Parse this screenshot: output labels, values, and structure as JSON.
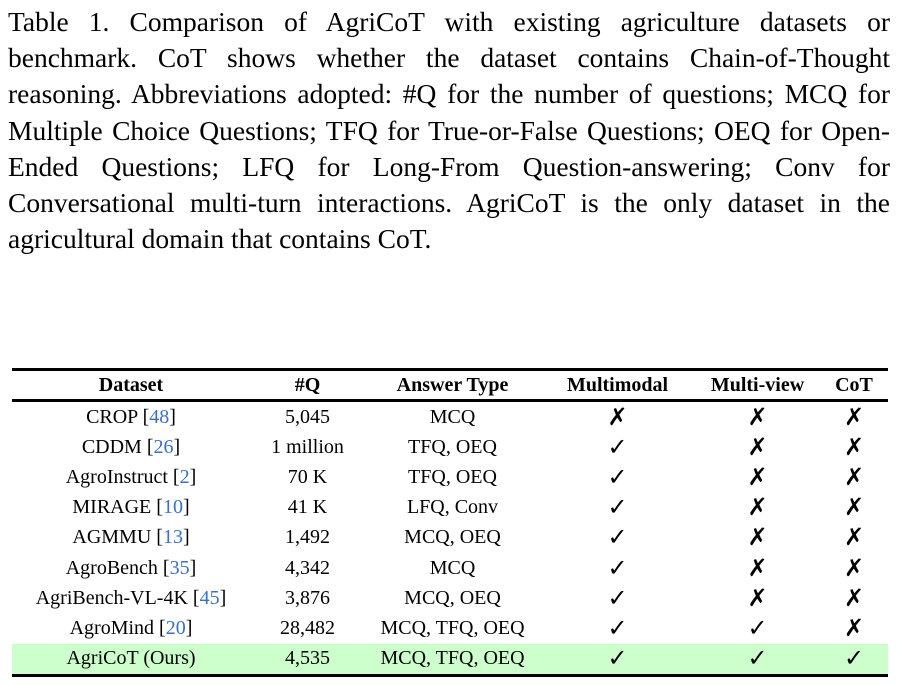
{
  "caption": "Table 1. Comparison of AgriCoT with existing agriculture datasets or benchmark. CoT shows whether the dataset contains Chain-of-Thought reasoning. Abbreviations adopted: #Q for the number of questions; MCQ for Multiple Choice Questions; TFQ for True-or-False Questions; OEQ for Open-Ended Questions; LFQ for Long-From Question-answering; Conv for Conversational multi-turn interactions. AgriCoT is the only dataset in the agricultural domain that contains CoT.",
  "table": {
    "headers": [
      "Dataset",
      "#Q",
      "Answer Type",
      "Multimodal",
      "Multi-view",
      "CoT"
    ],
    "symbols": {
      "yes": "✓",
      "no": "✗"
    },
    "highlight_color": "#ccffcc",
    "citation_color": "#3b6fc4",
    "rows": [
      {
        "name": "CROP",
        "cite": "48",
        "q": "5,045",
        "answer": "MCQ",
        "multimodal": "✗",
        "multiview": "✗",
        "cot": "✗"
      },
      {
        "name": "CDDM",
        "cite": "26",
        "q": "1 million",
        "answer": "TFQ, OEQ",
        "multimodal": "✓",
        "multiview": "✗",
        "cot": "✗"
      },
      {
        "name": "AgroInstruct",
        "cite": "2",
        "q": "70 K",
        "answer": "TFQ, OEQ",
        "multimodal": "✓",
        "multiview": "✗",
        "cot": "✗"
      },
      {
        "name": "MIRAGE",
        "cite": "10",
        "q": "41 K",
        "answer": "LFQ, Conv",
        "multimodal": "✓",
        "multiview": "✗",
        "cot": "✗"
      },
      {
        "name": "AGMMU",
        "cite": "13",
        "q": "1,492",
        "answer": "MCQ, OEQ",
        "multimodal": "✓",
        "multiview": "✗",
        "cot": "✗"
      },
      {
        "name": "AgroBench",
        "cite": "35",
        "q": "4,342",
        "answer": "MCQ",
        "multimodal": "✓",
        "multiview": "✗",
        "cot": "✗"
      },
      {
        "name": "AgriBench-VL-4K",
        "cite": "45",
        "q": "3,876",
        "answer": "MCQ, OEQ",
        "multimodal": "✓",
        "multiview": "✗",
        "cot": "✗"
      },
      {
        "name": "AgroMind",
        "cite": "20",
        "q": "28,482",
        "answer": "MCQ, TFQ, OEQ",
        "multimodal": "✓",
        "multiview": "✓",
        "cot": "✗"
      },
      {
        "name": "AgriCoT (Ours)",
        "cite": "",
        "q": "4,535",
        "answer": "MCQ, TFQ, OEQ",
        "multimodal": "✓",
        "multiview": "✓",
        "cot": "✓"
      }
    ]
  }
}
